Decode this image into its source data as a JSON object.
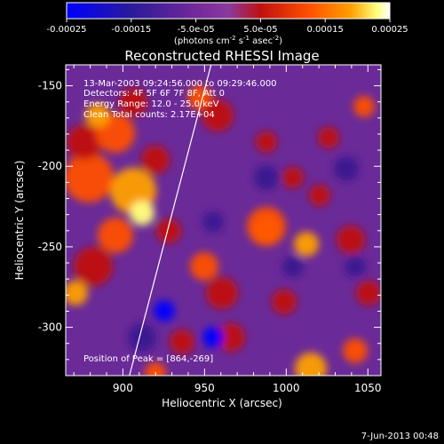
{
  "chart_data": {
    "type": "heatmap",
    "title": "Reconstructed RHESSI Image",
    "xlabel": "Heliocentric X (arcsec)",
    "ylabel": "Heliocentric Y (arcsec)",
    "xlim": [
      865,
      1058
    ],
    "ylim": [
      -330,
      -137
    ],
    "x_ticks": [
      900,
      950,
      1000,
      1050
    ],
    "y_ticks": [
      -150,
      -200,
      -250,
      -300
    ],
    "colorbar": {
      "min": -0.00025,
      "max": 0.00025,
      "tick_labels": [
        "-0.00025",
        "-0.00015",
        "-5.0e-05",
        "5.0e-05",
        "0.00015",
        "0.00025"
      ],
      "tick_values": [
        -0.00025,
        -0.00015,
        -5e-05,
        5e-05,
        0.00015,
        0.00025
      ],
      "unit_label_base": "(photons cm",
      "unit_sup1": "-2",
      "unit_mid": " s",
      "unit_sup2": "-1",
      "unit_mid2": " asec",
      "unit_sup3": "-2",
      "unit_end": ")"
    },
    "annotations": {
      "time": "13-Mar-2003 09:24:56.000 to 09:29:46.000",
      "detectors": "Detectors: 4F 5F 6F 7F 8F, Att 0",
      "energy": "Energy Range: 12.0 - 25.0 keV",
      "clean": "Clean    Total counts: 2.17E+04",
      "peak": "Position of Peak = [864,-269]"
    },
    "limb_line": [
      [
        904,
        -330
      ],
      [
        954,
        -137
      ]
    ],
    "colors": {
      "colormap": [
        "#0000ff",
        "#3a1890",
        "#7a2a9a",
        "#8a3aa0",
        "#c01010",
        "#ff5000",
        "#ffa000",
        "#ffff80",
        "#ffffff"
      ],
      "axes": "#ffffff",
      "background": "#000000"
    }
  },
  "footer": {
    "date": "7-Jun-2013 00:48"
  }
}
